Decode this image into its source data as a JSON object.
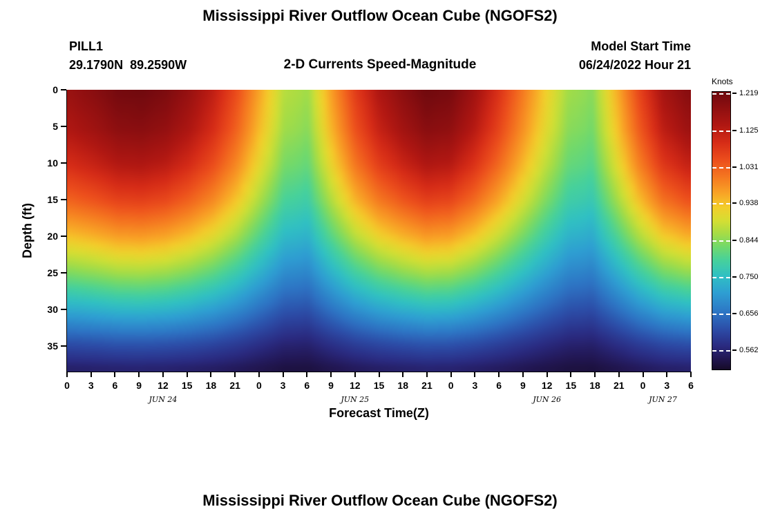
{
  "titles": {
    "main": "Mississippi River Outflow Ocean Cube (NGOFS2)",
    "station_id": "PILL1",
    "station_coords": "29.1790N  89.2590W",
    "plot_subtitle": "2-D Currents Speed-Magnitude",
    "model_start_label": "Model Start Time",
    "model_start_value": "06/24/2022 Hour 21",
    "next_plot_title": "Mississippi River Outflow Ocean Cube (NGOFS2)"
  },
  "chart_data": {
    "type": "heatmap",
    "title": "2-D Currents Speed-Magnitude",
    "xlabel": "Forecast Time(Z)",
    "ylabel": "Depth (ft)",
    "colorbar_label": "Knots",
    "time_max_hours": 78,
    "x_hours": [
      0,
      3,
      6,
      9,
      12,
      15,
      18,
      21,
      24,
      27,
      30,
      33,
      36,
      39,
      42,
      45,
      48,
      51,
      54,
      57,
      60,
      63,
      66,
      69,
      72,
      75,
      78
    ],
    "x_tick_labels": [
      "0",
      "3",
      "6",
      "9",
      "12",
      "15",
      "18",
      "21",
      "0",
      "3",
      "6",
      "9",
      "12",
      "15",
      "18",
      "21",
      "0",
      "3",
      "6",
      "9",
      "12",
      "15",
      "18",
      "21",
      "0",
      "3",
      "6"
    ],
    "day_labels": [
      {
        "label": "JUN 24",
        "t": 12
      },
      {
        "label": "JUN 25",
        "t": 36
      },
      {
        "label": "JUN 26",
        "t": 60
      },
      {
        "label": "JUN 27",
        "t": 74.5
      }
    ],
    "depth_ticks": [
      0,
      5,
      10,
      15,
      20,
      25,
      30,
      35
    ],
    "depth_tick_labels": [
      "0",
      "5",
      "10",
      "15",
      "20",
      "25",
      "30",
      "35"
    ],
    "depth_max_ft": 38.5,
    "surface_speed_knots": [
      1.17,
      1.19,
      1.215,
      1.22,
      1.205,
      1.17,
      1.12,
      1.05,
      0.96,
      0.875,
      0.86,
      0.97,
      1.07,
      1.14,
      1.185,
      1.22,
      1.21,
      1.16,
      1.09,
      1.01,
      0.93,
      0.86,
      0.845,
      0.95,
      1.06,
      1.15,
      1.19
    ],
    "bottom_speed_knots": 0.5,
    "depth_shape": {
      "depths": [
        0,
        5,
        10,
        15,
        20,
        25,
        30,
        35,
        38.5
      ],
      "factors": [
        1.0,
        0.96,
        0.89,
        0.79,
        0.66,
        0.51,
        0.35,
        0.18,
        0.09
      ]
    },
    "colorbar_range": [
      0.515,
      1.225
    ],
    "colorbar_ticks": [
      1.219,
      1.125,
      1.031,
      0.938,
      0.844,
      0.75,
      0.656,
      0.562
    ],
    "colorbar_tick_labels": [
      "1.219",
      "1.125",
      "1.031",
      "0.938",
      "0.844",
      "0.750",
      "0.656",
      "0.562"
    ],
    "colormap_stops": [
      [
        0.515,
        "#160b28"
      ],
      [
        0.545,
        "#221754"
      ],
      [
        0.575,
        "#2a2a80"
      ],
      [
        0.615,
        "#2c4aa5"
      ],
      [
        0.66,
        "#2d74c4"
      ],
      [
        0.71,
        "#2e9ed2"
      ],
      [
        0.755,
        "#30c0c3"
      ],
      [
        0.795,
        "#47d19b"
      ],
      [
        0.83,
        "#73d96a"
      ],
      [
        0.862,
        "#a5dc46"
      ],
      [
        0.895,
        "#d4de33"
      ],
      [
        0.93,
        "#f3cd2b"
      ],
      [
        0.965,
        "#f8a426"
      ],
      [
        1.005,
        "#f57a20"
      ],
      [
        1.05,
        "#ec4e1c"
      ],
      [
        1.095,
        "#d62c17"
      ],
      [
        1.14,
        "#b01712"
      ],
      [
        1.19,
        "#8a0e10"
      ],
      [
        1.225,
        "#6e090e"
      ]
    ]
  }
}
